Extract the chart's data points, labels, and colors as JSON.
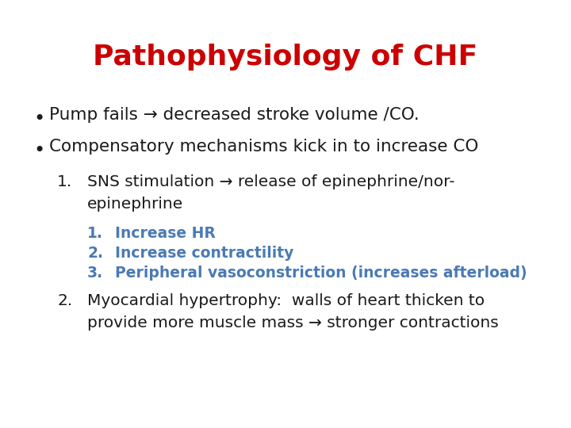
{
  "title": "Pathophysiology of CHF",
  "title_color": "#CC0000",
  "title_fontsize": 26,
  "title_fontweight": "bold",
  "background_color": "#FFFFFF",
  "bullet_color": "#1a1a1a",
  "bullet_fontsize": 15.5,
  "sub1_color": "#1a1a1a",
  "sub1_fontsize": 14.5,
  "sub2_color": "#4a7ab5",
  "sub2_fontsize": 13.5,
  "bullet1": "Pump fails → decreased stroke volume /CO.",
  "bullet2": "Compensatory mechanisms kick in to increase CO",
  "item1_num": "1.",
  "item1_line1": "SNS stimulation → release of epinephrine/nor-",
  "item1_line2": "epinephrine",
  "subitems": [
    {
      "num": "1.",
      "text": "Increase HR"
    },
    {
      "num": "2.",
      "text": "Increase contractility"
    },
    {
      "num": "3.",
      "text": "Peripheral vasoconstriction (increases afterload)"
    }
  ],
  "item2_num": "2.",
  "item2_line1": "Myocardial hypertrophy:  walls of heart thicken to",
  "item2_line2": "provide more muscle mass → stronger contractions"
}
